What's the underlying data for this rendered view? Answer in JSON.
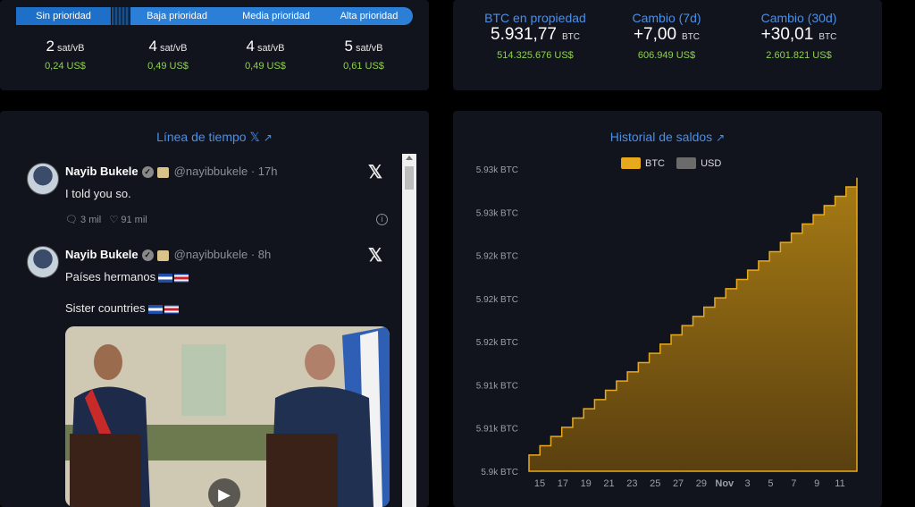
{
  "fees": {
    "tabs": [
      "Sin prioridad",
      "Baja prioridad",
      "Media prioridad",
      "Alta prioridad"
    ],
    "items": [
      {
        "value": "2",
        "unit": "sat/vB",
        "usd": "0,24 US$"
      },
      {
        "value": "4",
        "unit": "sat/vB",
        "usd": "0,49 US$"
      },
      {
        "value": "4",
        "unit": "sat/vB",
        "usd": "0,49 US$"
      },
      {
        "value": "5",
        "unit": "sat/vB",
        "usd": "0,61 US$"
      }
    ]
  },
  "btc_stats": [
    {
      "label": "BTC en propiedad",
      "value": "5.931,77",
      "unit": "BTC",
      "usd": "514.325.676 US$"
    },
    {
      "label": "Cambio (7d)",
      "value": "+7,00",
      "unit": "BTC",
      "usd": "606.949 US$"
    },
    {
      "label": "Cambio (30d)",
      "value": "+30,01",
      "unit": "BTC",
      "usd": "2.601.821 US$"
    }
  ],
  "timeline": {
    "title": "Línea de tiempo 𝕏",
    "external_icon": "external-link-icon",
    "tweets": [
      {
        "name": "Nayib Bukele",
        "handle": "@nayibbukele · 17h",
        "text": "I told you so.",
        "replies": "3 mil",
        "likes": "91 mil"
      },
      {
        "name": "Nayib Bukele",
        "handle": "@nayibbukele · 8h",
        "text1": "Países hermanos",
        "text2": "Sister countries"
      }
    ]
  },
  "history": {
    "title": "Historial de saldos",
    "legend": [
      "BTC",
      "USD"
    ],
    "colors": {
      "btc": "#e8a91c",
      "usd": "#6b6b6b",
      "accent": "#4a8fe8"
    }
  },
  "chart_data": {
    "type": "area",
    "title": "Historial de saldos",
    "series": [
      {
        "name": "BTC",
        "values": [
          5901.76,
          5902.76,
          5903.76,
          5904.76,
          5905.76,
          5906.76,
          5907.76,
          5908.76,
          5909.76,
          5910.76,
          5911.76,
          5912.76,
          5913.76,
          5914.76,
          5915.76,
          5916.76,
          5917.76,
          5918.76,
          5919.76,
          5920.76,
          5921.76,
          5922.76,
          5923.76,
          5924.76,
          5925.76,
          5926.76,
          5927.76,
          5928.76,
          5929.76,
          5930.77,
          5931.77
        ]
      }
    ],
    "x_ticks": [
      "15",
      "17",
      "19",
      "21",
      "23",
      "25",
      "27",
      "29",
      "Nov",
      "3",
      "5",
      "7",
      "9",
      "11"
    ],
    "y_ticks": [
      "5.9k BTC",
      "5.91k BTC",
      "5.91k BTC",
      "5.92k BTC",
      "5.92k BTC",
      "5.92k BTC",
      "5.93k BTC",
      "5.93k BTC"
    ],
    "ylim": [
      5900,
      5933
    ],
    "grid": false,
    "legend_position": "top-center"
  }
}
